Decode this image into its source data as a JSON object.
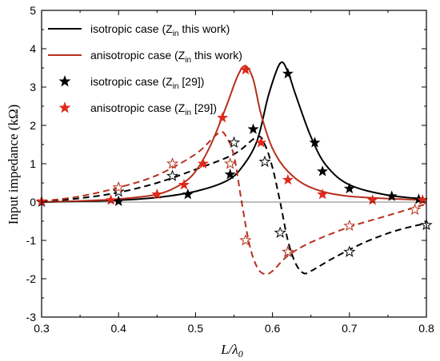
{
  "chart_data": {
    "type": "line",
    "xlabel": "L/λ₀",
    "xlabel_main": "L/λ",
    "xlabel_sub": "0",
    "ylabel": "Input impedance (kΩ)",
    "xlim": [
      0.3,
      0.8
    ],
    "ylim": [
      -3,
      5
    ],
    "xticks": [
      "0.3",
      "0.4",
      "0.5",
      "0.6",
      "0.7",
      "0.8"
    ],
    "yticks": [
      "-3",
      "-2",
      "-1",
      "0",
      "1",
      "2",
      "3",
      "4",
      "5"
    ],
    "grid": false,
    "legend_position": "top-left",
    "legend": [
      {
        "prefix": "isotropic case (Z",
        "sub": "in",
        "suffix": " this work)",
        "marker": "line",
        "color": "#000000"
      },
      {
        "prefix": "anisotropic case (Z",
        "sub": "in",
        "suffix": " this work)",
        "marker": "line",
        "color": "#b5301c"
      },
      {
        "prefix": "isotropic case (Z",
        "sub": "in",
        "suffix": " [29])",
        "marker": "star",
        "color": "#000000"
      },
      {
        "prefix": "anisotropic case (Z",
        "sub": "in",
        "suffix": " [29])",
        "marker": "star",
        "color": "#e0281c"
      }
    ],
    "series": [
      {
        "role": "isotropic-real-this-work",
        "color": "#000000",
        "style": "solid",
        "points": [
          [
            0.3,
            0.0
          ],
          [
            0.35,
            0.02
          ],
          [
            0.4,
            0.05
          ],
          [
            0.45,
            0.12
          ],
          [
            0.5,
            0.28
          ],
          [
            0.54,
            0.55
          ],
          [
            0.56,
            0.9
          ],
          [
            0.58,
            1.6
          ],
          [
            0.595,
            2.8
          ],
          [
            0.61,
            3.62
          ],
          [
            0.62,
            3.4
          ],
          [
            0.63,
            2.8
          ],
          [
            0.65,
            1.7
          ],
          [
            0.67,
            0.95
          ],
          [
            0.7,
            0.45
          ],
          [
            0.75,
            0.18
          ],
          [
            0.8,
            0.08
          ]
        ]
      },
      {
        "role": "isotropic-imag-this-work",
        "color": "#000000",
        "style": "dashed",
        "points": [
          [
            0.3,
            0.0
          ],
          [
            0.35,
            0.1
          ],
          [
            0.4,
            0.25
          ],
          [
            0.45,
            0.5
          ],
          [
            0.5,
            0.85
          ],
          [
            0.55,
            1.25
          ],
          [
            0.58,
            1.7
          ],
          [
            0.59,
            1.5
          ],
          [
            0.6,
            0.9
          ],
          [
            0.61,
            0.0
          ],
          [
            0.62,
            -1.0
          ],
          [
            0.63,
            -1.6
          ],
          [
            0.64,
            -1.85
          ],
          [
            0.65,
            -1.8
          ],
          [
            0.68,
            -1.45
          ],
          [
            0.72,
            -1.05
          ],
          [
            0.76,
            -0.75
          ],
          [
            0.8,
            -0.55
          ]
        ]
      },
      {
        "role": "anisotropic-real-this-work",
        "color": "#b5301c",
        "style": "solid",
        "points": [
          [
            0.3,
            0.0
          ],
          [
            0.35,
            0.03
          ],
          [
            0.4,
            0.08
          ],
          [
            0.45,
            0.2
          ],
          [
            0.48,
            0.45
          ],
          [
            0.5,
            0.8
          ],
          [
            0.52,
            1.5
          ],
          [
            0.54,
            2.5
          ],
          [
            0.555,
            3.3
          ],
          [
            0.565,
            3.55
          ],
          [
            0.575,
            3.2
          ],
          [
            0.585,
            2.3
          ],
          [
            0.6,
            1.4
          ],
          [
            0.62,
            0.8
          ],
          [
            0.65,
            0.38
          ],
          [
            0.7,
            0.15
          ],
          [
            0.8,
            0.05
          ]
        ]
      },
      {
        "role": "anisotropic-imag-this-work",
        "color": "#b5301c",
        "style": "dashed",
        "points": [
          [
            0.3,
            0.02
          ],
          [
            0.35,
            0.15
          ],
          [
            0.4,
            0.38
          ],
          [
            0.45,
            0.7
          ],
          [
            0.5,
            1.25
          ],
          [
            0.53,
            1.8
          ],
          [
            0.54,
            1.7
          ],
          [
            0.55,
            1.2
          ],
          [
            0.56,
            0.0
          ],
          [
            0.57,
            -1.1
          ],
          [
            0.58,
            -1.7
          ],
          [
            0.59,
            -1.88
          ],
          [
            0.6,
            -1.8
          ],
          [
            0.62,
            -1.4
          ],
          [
            0.65,
            -1.05
          ],
          [
            0.7,
            -0.65
          ],
          [
            0.75,
            -0.35
          ],
          [
            0.8,
            -0.05
          ]
        ]
      },
      {
        "role": "isotropic-ref29",
        "color": "#000000",
        "marker": "star",
        "filled": true,
        "points": [
          [
            0.3,
            0.0
          ],
          [
            0.4,
            0.02
          ],
          [
            0.49,
            0.2
          ],
          [
            0.545,
            0.72
          ],
          [
            0.575,
            1.9
          ],
          [
            0.62,
            3.35
          ],
          [
            0.655,
            1.55
          ],
          [
            0.665,
            0.8
          ],
          [
            0.7,
            0.35
          ],
          [
            0.755,
            0.15
          ],
          [
            0.79,
            0.07
          ]
        ]
      },
      {
        "role": "isotropic-ref29",
        "color": "#000000",
        "marker": "star",
        "filled": false,
        "points": [
          [
            0.4,
            0.27
          ],
          [
            0.47,
            0.68
          ],
          [
            0.55,
            1.55
          ],
          [
            0.59,
            1.05
          ],
          [
            0.61,
            -0.8
          ],
          [
            0.62,
            -1.3
          ],
          [
            0.7,
            -1.3
          ],
          [
            0.8,
            -0.6
          ]
        ]
      },
      {
        "role": "anisotropic-ref29",
        "color": "#e0281c",
        "marker": "star",
        "filled": true,
        "points": [
          [
            0.3,
            0.02
          ],
          [
            0.39,
            0.05
          ],
          [
            0.45,
            0.2
          ],
          [
            0.485,
            0.45
          ],
          [
            0.51,
            1.0
          ],
          [
            0.535,
            2.2
          ],
          [
            0.565,
            3.45
          ],
          [
            0.585,
            1.55
          ],
          [
            0.62,
            0.58
          ],
          [
            0.665,
            0.2
          ],
          [
            0.73,
            0.05
          ],
          [
            0.795,
            0.05
          ]
        ]
      },
      {
        "role": "anisotropic-ref29",
        "color": "#b5301c",
        "marker": "star",
        "filled": false,
        "points": [
          [
            0.4,
            0.38
          ],
          [
            0.47,
            1.0
          ],
          [
            0.545,
            1.0
          ],
          [
            0.565,
            -1.0
          ],
          [
            0.62,
            -1.3
          ],
          [
            0.7,
            -0.62
          ],
          [
            0.785,
            -0.2
          ]
        ]
      }
    ]
  }
}
